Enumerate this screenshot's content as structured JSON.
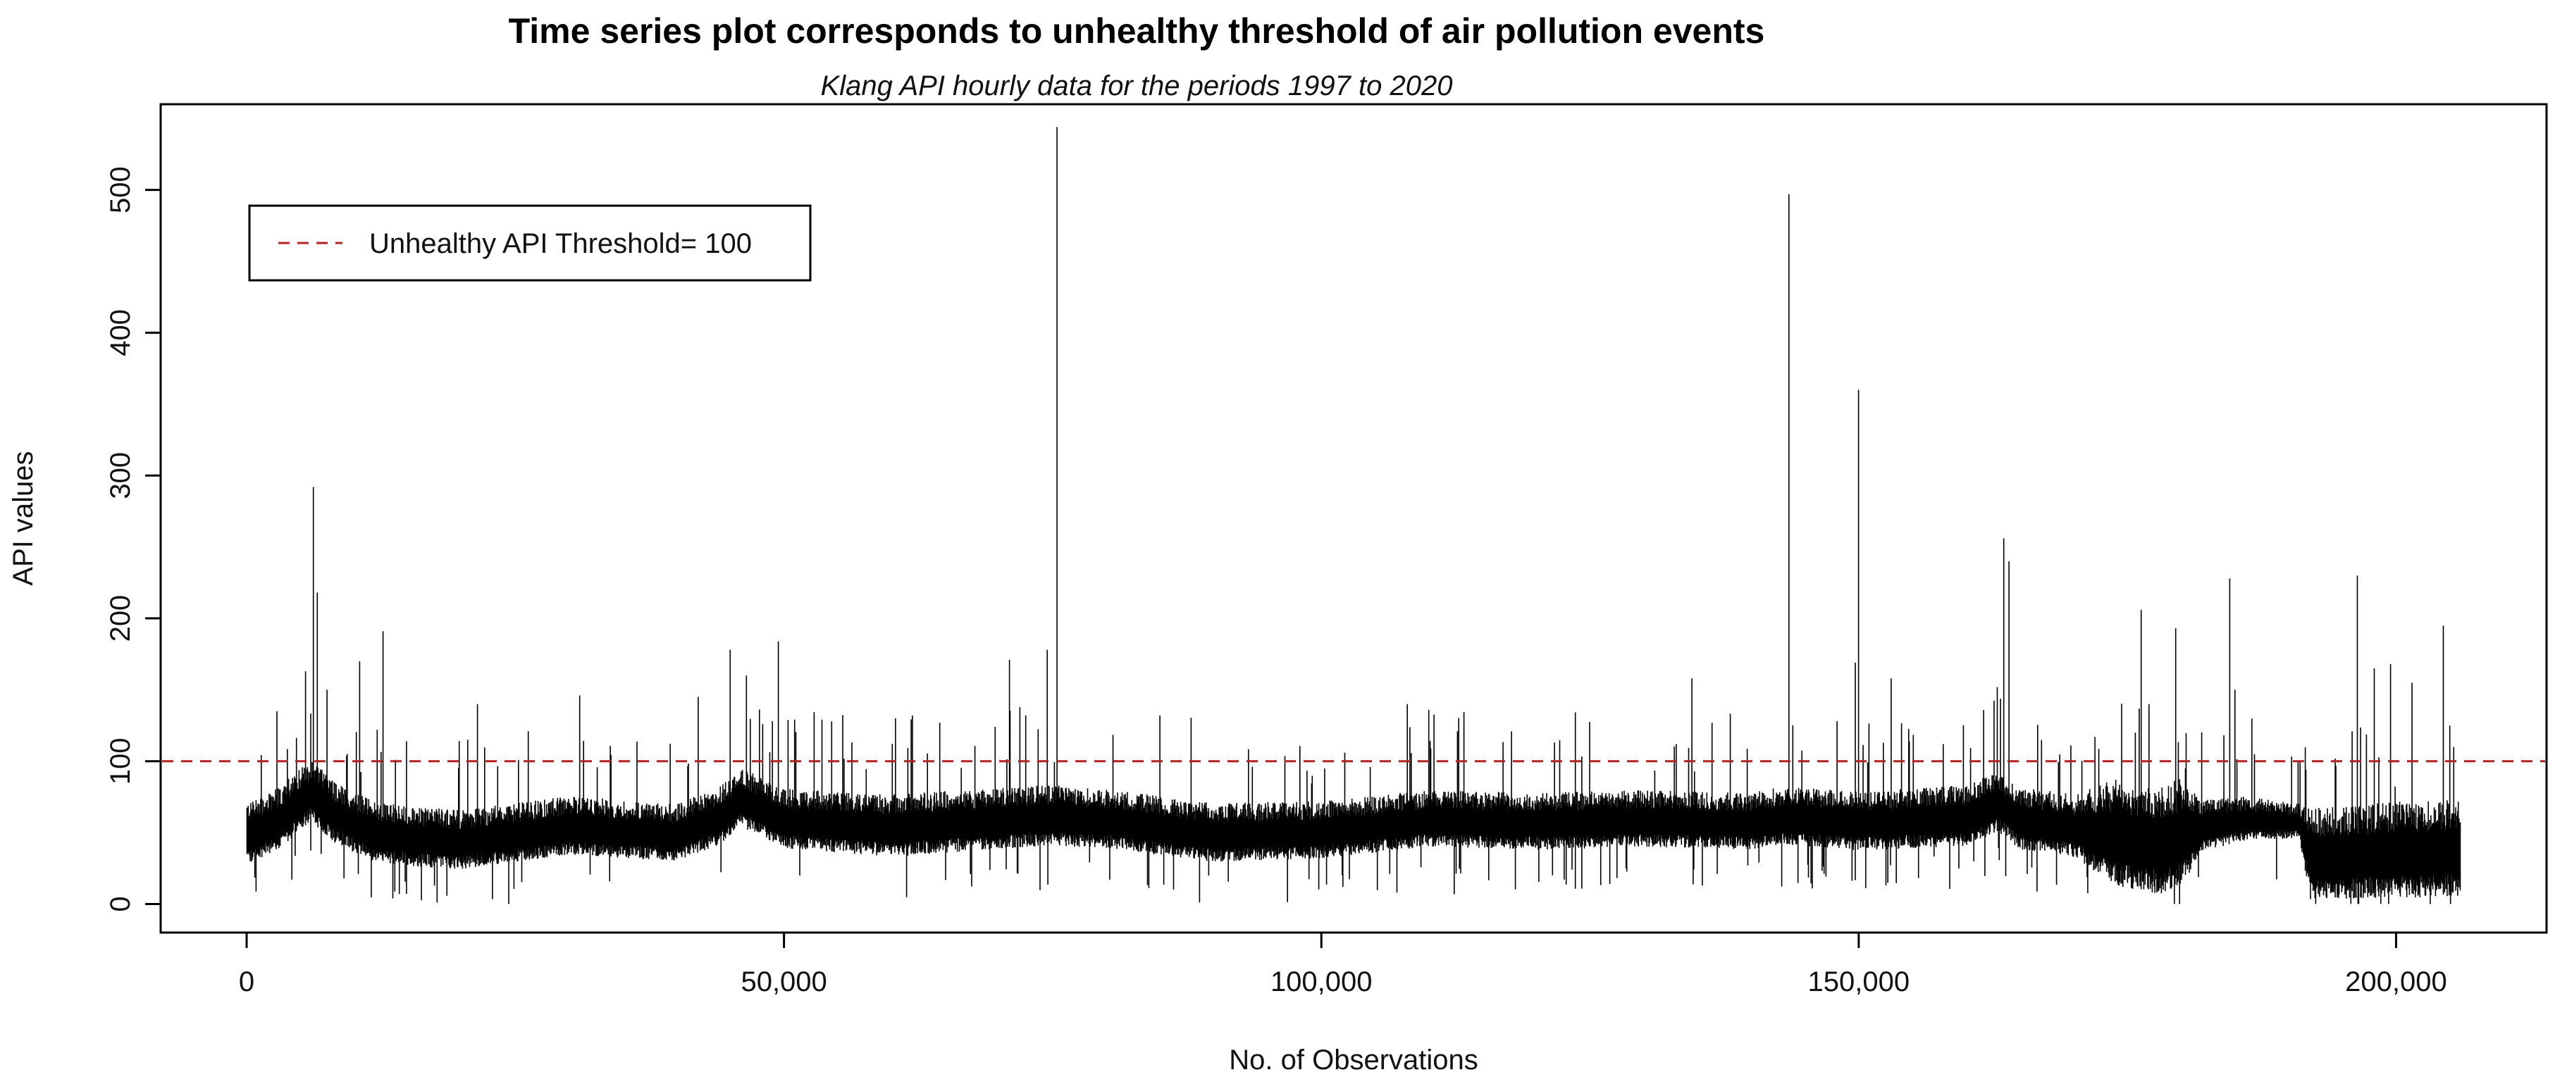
{
  "chart_data": {
    "type": "line",
    "title": "Time series plot corresponds to unhealthy threshold of air pollution events",
    "subtitle": "Klang API hourly data for the periods 1997 to 2020",
    "xlabel": "No. of Observations",
    "ylabel": "API values",
    "xlim": [
      -8000,
      214000
    ],
    "ylim": [
      -20,
      560
    ],
    "x_ticks": [
      0,
      50000,
      100000,
      150000,
      200000
    ],
    "x_tick_labels": [
      "0",
      "50,000",
      "100,000",
      "150,000",
      "200,000"
    ],
    "y_ticks": [
      0,
      100,
      200,
      300,
      400,
      500
    ],
    "y_tick_labels": [
      "0",
      "100",
      "200",
      "300",
      "400",
      "500"
    ],
    "grid": false,
    "legend_position": "top-left",
    "colors": {
      "series": "#000000",
      "threshold": "#b22222"
    },
    "threshold": {
      "name": "Unhealthy API Threshold= 100",
      "value": 100,
      "style": "dashed"
    },
    "series": [
      {
        "n_observations": 206000,
        "baseline": [
          [
            0,
            50
          ],
          [
            3000,
            60
          ],
          [
            6000,
            80
          ],
          [
            8000,
            65
          ],
          [
            12000,
            50
          ],
          [
            20000,
            45
          ],
          [
            30000,
            55
          ],
          [
            40000,
            50
          ],
          [
            44000,
            62
          ],
          [
            46000,
            75
          ],
          [
            50000,
            60
          ],
          [
            60000,
            55
          ],
          [
            70000,
            60
          ],
          [
            75000,
            62
          ],
          [
            80000,
            60
          ],
          [
            90000,
            50
          ],
          [
            100000,
            52
          ],
          [
            110000,
            60
          ],
          [
            120000,
            58
          ],
          [
            130000,
            60
          ],
          [
            140000,
            58
          ],
          [
            143000,
            62
          ],
          [
            150000,
            58
          ],
          [
            155000,
            60
          ],
          [
            160000,
            62
          ],
          [
            163000,
            72
          ],
          [
            165000,
            60
          ],
          [
            170000,
            55
          ],
          [
            174000,
            50
          ],
          [
            178000,
            45
          ],
          [
            182000,
            55
          ],
          [
            186000,
            60
          ],
          [
            191000,
            58
          ],
          [
            192000,
            35
          ],
          [
            206000,
            40
          ]
        ],
        "spread": [
          [
            0,
            22
          ],
          [
            40000,
            20
          ],
          [
            60000,
            22
          ],
          [
            100000,
            20
          ],
          [
            140000,
            20
          ],
          [
            170000,
            22
          ],
          [
            174000,
            38
          ],
          [
            180000,
            38
          ],
          [
            182000,
            18
          ],
          [
            191000,
            12
          ],
          [
            192000,
            32
          ],
          [
            206000,
            35
          ]
        ],
        "peaks": [
          {
            "x": 2800,
            "y": 135
          },
          {
            "x": 5500,
            "y": 163
          },
          {
            "x": 6200,
            "y": 292
          },
          {
            "x": 6600,
            "y": 218
          },
          {
            "x": 7500,
            "y": 150
          },
          {
            "x": 10500,
            "y": 170
          },
          {
            "x": 12700,
            "y": 191
          },
          {
            "x": 21500,
            "y": 140
          },
          {
            "x": 31000,
            "y": 146
          },
          {
            "x": 42000,
            "y": 145
          },
          {
            "x": 45000,
            "y": 178
          },
          {
            "x": 46500,
            "y": 160
          },
          {
            "x": 49500,
            "y": 184
          },
          {
            "x": 71000,
            "y": 171
          },
          {
            "x": 74500,
            "y": 178
          },
          {
            "x": 75400,
            "y": 544
          },
          {
            "x": 85000,
            "y": 132
          },
          {
            "x": 108000,
            "y": 140
          },
          {
            "x": 110000,
            "y": 136
          },
          {
            "x": 134500,
            "y": 158
          },
          {
            "x": 143500,
            "y": 497
          },
          {
            "x": 149700,
            "y": 169
          },
          {
            "x": 150000,
            "y": 360
          },
          {
            "x": 153000,
            "y": 158
          },
          {
            "x": 163500,
            "y": 256
          },
          {
            "x": 164000,
            "y": 240
          },
          {
            "x": 176300,
            "y": 206
          },
          {
            "x": 177000,
            "y": 140
          },
          {
            "x": 179500,
            "y": 193
          },
          {
            "x": 184500,
            "y": 228
          },
          {
            "x": 185000,
            "y": 150
          },
          {
            "x": 196400,
            "y": 230
          },
          {
            "x": 198000,
            "y": 165
          },
          {
            "x": 199500,
            "y": 168
          },
          {
            "x": 201500,
            "y": 155
          },
          {
            "x": 204400,
            "y": 195
          },
          {
            "x": 205000,
            "y": 125
          }
        ]
      }
    ]
  }
}
